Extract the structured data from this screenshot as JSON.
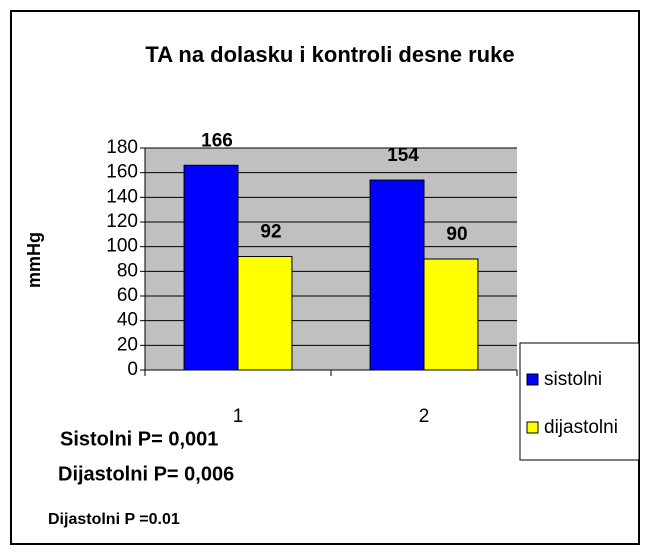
{
  "chart_data": {
    "type": "bar",
    "title": "TA na dolasku i kontroli desne ruke",
    "y_label": "mmHg",
    "categories": [
      "1",
      "2"
    ],
    "series": [
      {
        "name": "sistolni",
        "color": "#0000ff",
        "values": [
          166,
          154
        ]
      },
      {
        "name": "dijastolni",
        "color": "#ffff00",
        "values": [
          92,
          90
        ]
      }
    ],
    "ylim": [
      0,
      180
    ],
    "yticks": [
      0,
      20,
      40,
      60,
      80,
      100,
      120,
      140,
      160,
      180
    ],
    "grid": true,
    "legend": "right",
    "annotations": [
      "Sistolni P= 0,001",
      "Dijastolni P= 0,006",
      "Dijastolni P =0.01"
    ]
  }
}
